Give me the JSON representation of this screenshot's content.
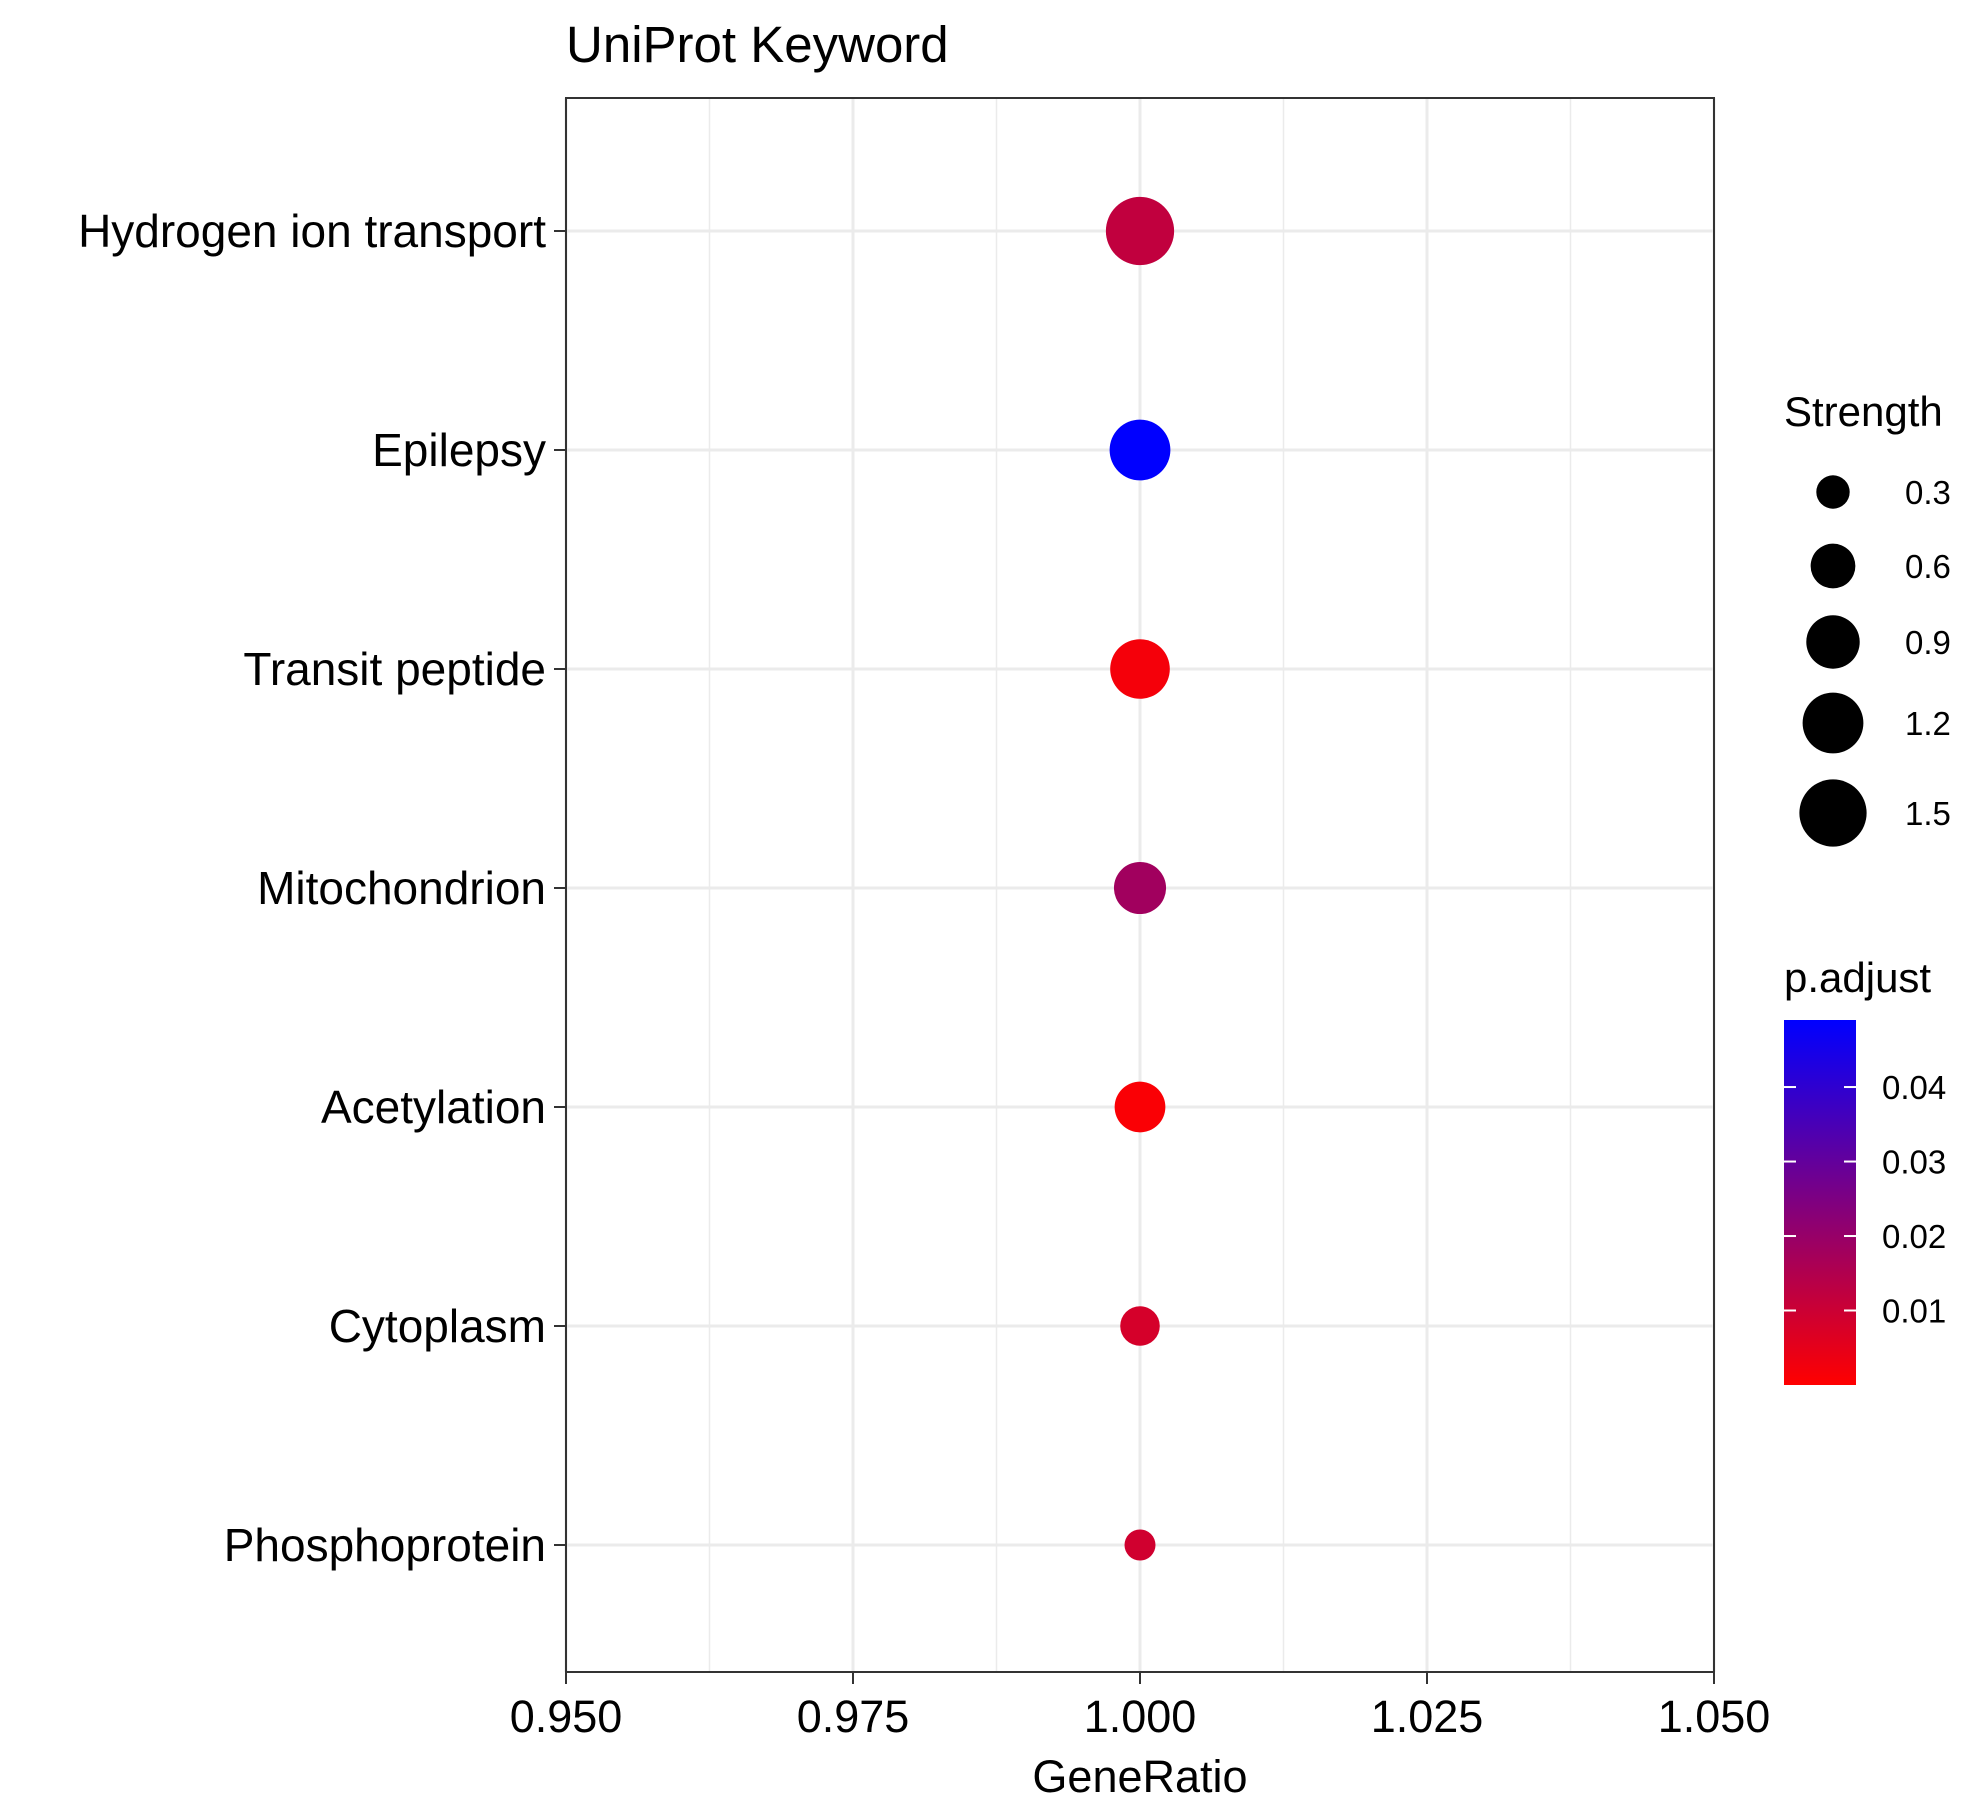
{
  "chart_data": {
    "type": "scatter",
    "title": "UniProt Keyword",
    "xlabel": "GeneRatio",
    "ylabel": "",
    "xlim": [
      0.95,
      1.05
    ],
    "x_ticks": [
      "0.950",
      "0.975",
      "1.000",
      "1.025",
      "1.050"
    ],
    "grid": true,
    "categories": [
      "Hydrogen ion transport",
      "Epilepsy",
      "Transit peptide",
      "Mitochondrion",
      "Acetylation",
      "Cytoplasm",
      "Phosphoprotein"
    ],
    "points": [
      {
        "term": "Hydrogen ion transport",
        "gene_ratio": 1.0,
        "strength": 1.55,
        "p_adjust": 0.012
      },
      {
        "term": "Epilepsy",
        "gene_ratio": 1.0,
        "strength": 1.2,
        "p_adjust": 0.049
      },
      {
        "term": "Transit peptide",
        "gene_ratio": 1.0,
        "strength": 1.15,
        "p_adjust": 0.002
      },
      {
        "term": "Mitochondrion",
        "gene_ratio": 1.0,
        "strength": 0.85,
        "p_adjust": 0.018
      },
      {
        "term": "Acetylation",
        "gene_ratio": 1.0,
        "strength": 0.8,
        "p_adjust": 0.001
      },
      {
        "term": "Cytoplasm",
        "gene_ratio": 1.0,
        "strength": 0.45,
        "p_adjust": 0.008
      },
      {
        "term": "Phosphoprotein",
        "gene_ratio": 1.0,
        "strength": 0.25,
        "p_adjust": 0.009
      }
    ],
    "size_legend": {
      "title": "Strength",
      "values": [
        0.3,
        0.6,
        0.9,
        1.2,
        1.5
      ],
      "labels": [
        "0.3",
        "0.6",
        "0.9",
        "1.2",
        "1.5"
      ]
    },
    "color_legend": {
      "title": "p.adjust",
      "range": [
        0.0,
        0.049
      ],
      "ticks": [
        0.04,
        0.03,
        0.02,
        0.01
      ],
      "labels": [
        "0.04",
        "0.03",
        "0.02",
        "0.01"
      ],
      "low_color": "#ff0000",
      "high_color": "#0000ff"
    },
    "legend_position": "right"
  }
}
